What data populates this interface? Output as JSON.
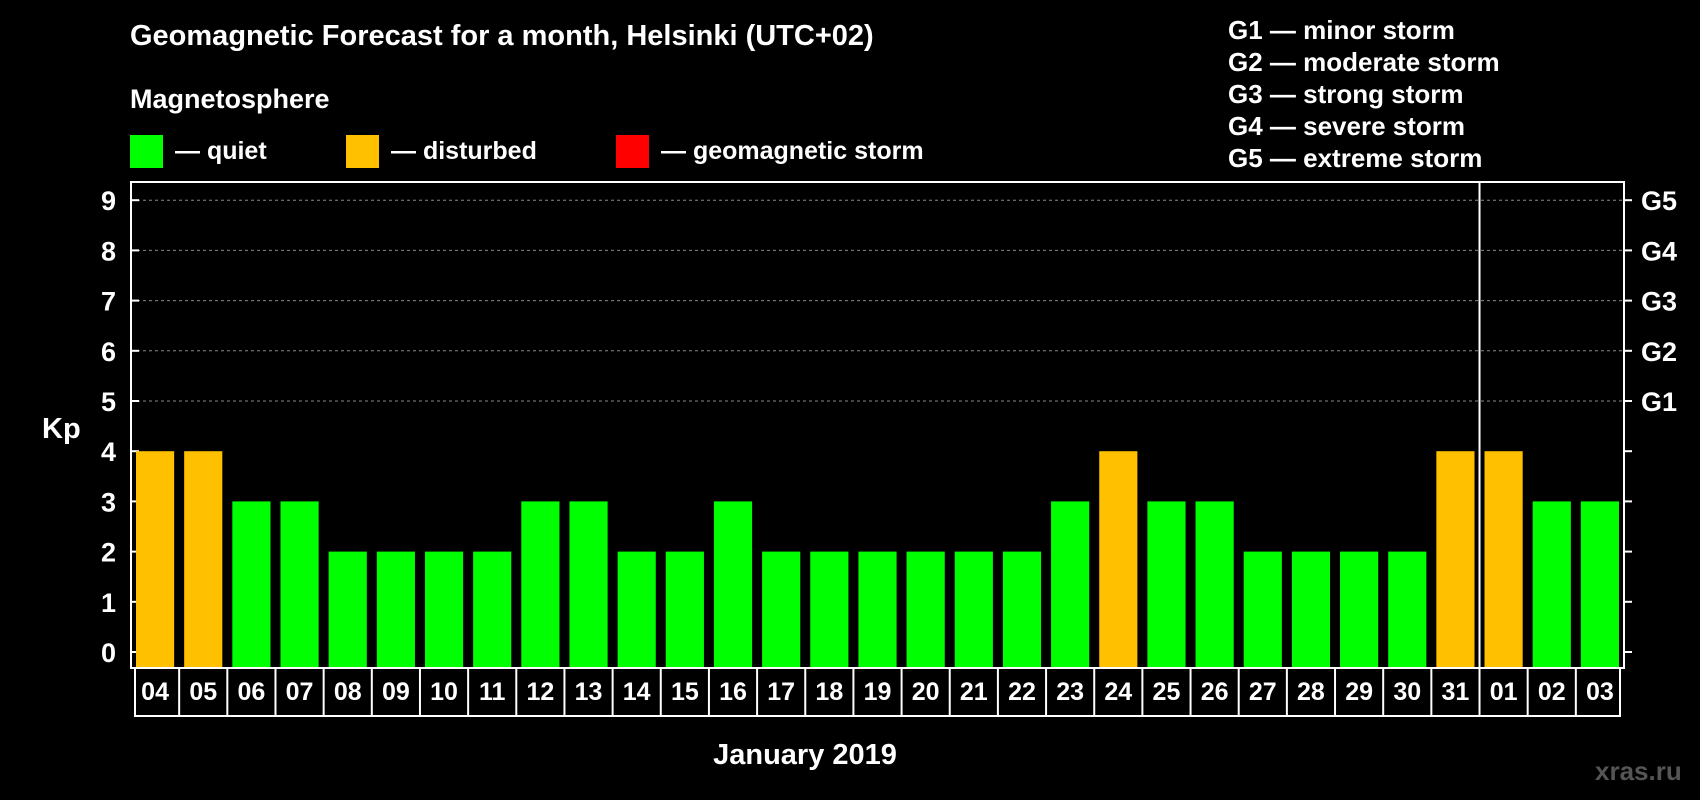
{
  "chart_data": {
    "type": "bar",
    "title": "Geomagnetic Forecast for a month, Helsinki (UTC+02)",
    "subtitle": "Magnetosphere",
    "xlabel": "January 2019",
    "ylabel": "Kp",
    "ylim": [
      0,
      9
    ],
    "yticks": [
      "0",
      "1",
      "2",
      "3",
      "4",
      "5",
      "6",
      "7",
      "8",
      "9"
    ],
    "right_axis_labels": [
      {
        "level": 5,
        "label": "G1"
      },
      {
        "level": 6,
        "label": "G2"
      },
      {
        "level": 7,
        "label": "G3"
      },
      {
        "level": 8,
        "label": "G4"
      },
      {
        "level": 9,
        "label": "G5"
      }
    ],
    "categories": [
      "04",
      "05",
      "06",
      "07",
      "08",
      "09",
      "10",
      "11",
      "12",
      "13",
      "14",
      "15",
      "16",
      "17",
      "18",
      "19",
      "20",
      "21",
      "22",
      "23",
      "24",
      "25",
      "26",
      "27",
      "28",
      "29",
      "30",
      "31",
      "01",
      "02",
      "03"
    ],
    "values": [
      4,
      4,
      3,
      3,
      2,
      2,
      2,
      2,
      3,
      3,
      2,
      2,
      3,
      2,
      2,
      2,
      2,
      2,
      2,
      3,
      4,
      3,
      3,
      2,
      2,
      2,
      2,
      4,
      4,
      3,
      3
    ],
    "status": [
      "disturbed",
      "disturbed",
      "quiet",
      "quiet",
      "quiet",
      "quiet",
      "quiet",
      "quiet",
      "quiet",
      "quiet",
      "quiet",
      "quiet",
      "quiet",
      "quiet",
      "quiet",
      "quiet",
      "quiet",
      "quiet",
      "quiet",
      "quiet",
      "disturbed",
      "quiet",
      "quiet",
      "quiet",
      "quiet",
      "quiet",
      "quiet",
      "disturbed",
      "disturbed",
      "quiet",
      "quiet"
    ],
    "month_divider_after": "31",
    "grid": true
  },
  "legend": [
    {
      "key": "quiet",
      "label": "— quiet",
      "color": "#00ff00"
    },
    {
      "key": "disturbed",
      "label": "— disturbed",
      "color": "#ffc000"
    },
    {
      "key": "storm",
      "label": "— geomagnetic storm",
      "color": "#ff0000"
    }
  ],
  "storm_scale": [
    "G1 — minor storm",
    "G2 — moderate storm",
    "G3 — strong storm",
    "G4 — severe storm",
    "G5 — extreme storm"
  ],
  "watermark": "xras.ru"
}
